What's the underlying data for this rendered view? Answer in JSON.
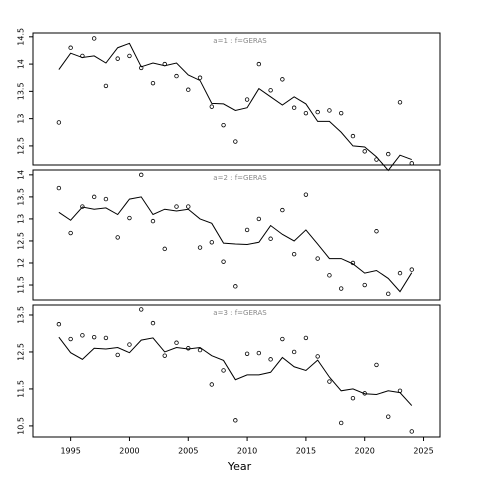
{
  "chart_data": [
    {
      "type": "scatter",
      "title": "a=1  :  f=GERAS",
      "color": "#000000",
      "x": [
        1994,
        1995,
        1996,
        1997,
        1998,
        1999,
        2000,
        2001,
        2002,
        2003,
        2004,
        2005,
        2006,
        2007,
        2008,
        2009,
        2010,
        2011,
        2012,
        2013,
        2014,
        2015,
        2016,
        2017,
        2018,
        2019,
        2020,
        2021,
        2022,
        2023,
        2024
      ],
      "series": [
        {
          "style": "points",
          "values": [
            12.93,
            14.3,
            14.15,
            14.47,
            13.6,
            14.1,
            14.15,
            13.93,
            13.65,
            14.0,
            13.78,
            13.53,
            13.75,
            13.22,
            12.88,
            12.58,
            13.35,
            14.0,
            13.52,
            13.72,
            13.2,
            13.1,
            13.12,
            13.15,
            13.1,
            12.68,
            12.4,
            12.25,
            12.35,
            13.3,
            12.18
          ]
        },
        {
          "style": "line",
          "values": [
            13.9,
            14.2,
            14.12,
            14.15,
            14.02,
            14.3,
            14.38,
            13.95,
            14.02,
            13.97,
            14.02,
            13.8,
            13.7,
            13.28,
            13.27,
            13.15,
            13.2,
            13.55,
            13.4,
            13.25,
            13.4,
            13.27,
            12.95,
            12.95,
            12.75,
            12.5,
            12.48,
            12.3,
            12.05,
            12.33,
            12.25
          ]
        }
      ],
      "xlim": [
        1991.8,
        2026.4
      ],
      "ylim": [
        12.15,
        14.57
      ],
      "yticks": [
        12.5,
        13.0,
        13.5,
        14.0,
        14.5
      ]
    },
    {
      "type": "scatter",
      "title": "a=2  :  f=GERAS",
      "color": "#000000",
      "x": [
        1994,
        1995,
        1996,
        1997,
        1998,
        1999,
        2000,
        2001,
        2002,
        2003,
        2004,
        2005,
        2006,
        2007,
        2008,
        2009,
        2010,
        2011,
        2012,
        2013,
        2014,
        2015,
        2016,
        2017,
        2018,
        2019,
        2020,
        2021,
        2022,
        2023,
        2024
      ],
      "series": [
        {
          "style": "points",
          "values": [
            13.7,
            12.68,
            13.28,
            13.5,
            13.45,
            12.58,
            13.02,
            14.0,
            12.95,
            12.32,
            13.28,
            13.28,
            12.35,
            12.47,
            12.03,
            11.47,
            12.75,
            13.0,
            12.55,
            13.2,
            12.2,
            13.55,
            12.1,
            11.72,
            11.42,
            12.0,
            11.5,
            12.72,
            11.3,
            11.77,
            11.85
          ]
        },
        {
          "style": "line",
          "values": [
            13.15,
            12.97,
            13.27,
            13.22,
            13.25,
            13.1,
            13.45,
            13.5,
            13.1,
            13.22,
            13.18,
            13.22,
            13.0,
            12.9,
            12.45,
            12.43,
            12.42,
            12.47,
            12.85,
            12.65,
            12.5,
            12.75,
            12.43,
            12.1,
            12.1,
            11.98,
            11.77,
            11.83,
            11.65,
            11.35,
            11.78
          ]
        }
      ],
      "xlim": [
        1991.8,
        2026.4
      ],
      "ylim": [
        11.16,
        14.11
      ],
      "yticks": [
        11.5,
        12.0,
        12.5,
        13.0,
        13.5,
        14.0
      ]
    },
    {
      "type": "scatter",
      "title": "a=3  :  f=GERAS",
      "color": "#000000",
      "xlabel": "Year",
      "x": [
        1994,
        1995,
        1996,
        1997,
        1998,
        1999,
        2000,
        2001,
        2002,
        2003,
        2004,
        2005,
        2006,
        2007,
        2008,
        2009,
        2010,
        2011,
        2012,
        2013,
        2014,
        2015,
        2016,
        2017,
        2018,
        2019,
        2020,
        2021,
        2022,
        2023,
        2024
      ],
      "series": [
        {
          "style": "points",
          "values": [
            13.25,
            12.85,
            12.95,
            12.9,
            12.88,
            12.42,
            12.7,
            13.65,
            13.28,
            12.4,
            12.75,
            12.6,
            12.55,
            11.62,
            12.0,
            10.65,
            12.45,
            12.47,
            12.3,
            12.85,
            12.5,
            12.88,
            12.38,
            11.7,
            10.58,
            11.25,
            11.38,
            12.15,
            10.75,
            11.45,
            10.35
          ]
        },
        {
          "style": "line",
          "values": [
            12.9,
            12.48,
            12.3,
            12.6,
            12.58,
            12.62,
            12.48,
            12.82,
            12.88,
            12.5,
            12.62,
            12.58,
            12.62,
            12.4,
            12.27,
            11.75,
            11.88,
            11.88,
            11.95,
            12.35,
            12.1,
            12.0,
            12.28,
            11.82,
            11.45,
            11.5,
            11.37,
            11.35,
            11.45,
            11.4,
            11.05
          ]
        }
      ],
      "xlim": [
        1991.8,
        2026.4
      ],
      "ylim": [
        10.2,
        13.77
      ],
      "yticks": [
        10.5,
        11.5,
        12.5,
        13.5
      ],
      "xticks": [
        1995,
        2000,
        2005,
        2010,
        2015,
        2020,
        2025
      ]
    }
  ]
}
